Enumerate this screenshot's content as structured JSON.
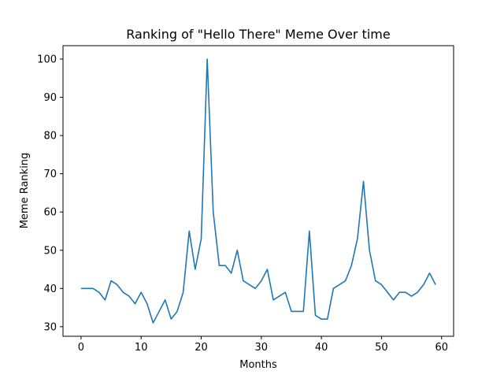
{
  "chart_data": {
    "type": "line",
    "title": "Ranking of \"Hello There\" Meme Over time",
    "xlabel": "Months",
    "ylabel": "Meme Ranking",
    "xlim": [
      -3,
      62
    ],
    "ylim": [
      27.5,
      103.5
    ],
    "xticks": [
      0,
      10,
      20,
      30,
      40,
      50,
      60
    ],
    "yticks": [
      30,
      40,
      50,
      60,
      70,
      80,
      90,
      100
    ],
    "grid": false,
    "series": [
      {
        "color": "#1f77b4",
        "x": [
          0,
          1,
          2,
          3,
          4,
          5,
          6,
          7,
          8,
          9,
          10,
          11,
          12,
          13,
          14,
          15,
          16,
          17,
          18,
          19,
          20,
          21,
          22,
          23,
          24,
          25,
          26,
          27,
          28,
          29,
          30,
          31,
          32,
          33,
          34,
          35,
          36,
          37,
          38,
          39,
          40,
          41,
          42,
          43,
          44,
          45,
          46,
          47,
          48,
          49,
          50,
          51,
          52,
          53,
          54,
          55,
          56,
          57,
          58,
          59
        ],
        "y": [
          40,
          40,
          40,
          39,
          37,
          42,
          41,
          39,
          38,
          36,
          39,
          36,
          31,
          34,
          37,
          32,
          34,
          39,
          55,
          45,
          53,
          100,
          60,
          46,
          46,
          44,
          50,
          42,
          41,
          40,
          42,
          45,
          37,
          38,
          39,
          34,
          34,
          34,
          55,
          33,
          32,
          32,
          40,
          41,
          42,
          46,
          53,
          68,
          50,
          42,
          41,
          39,
          37,
          39,
          39,
          38,
          39,
          41,
          44,
          41
        ]
      }
    ]
  }
}
